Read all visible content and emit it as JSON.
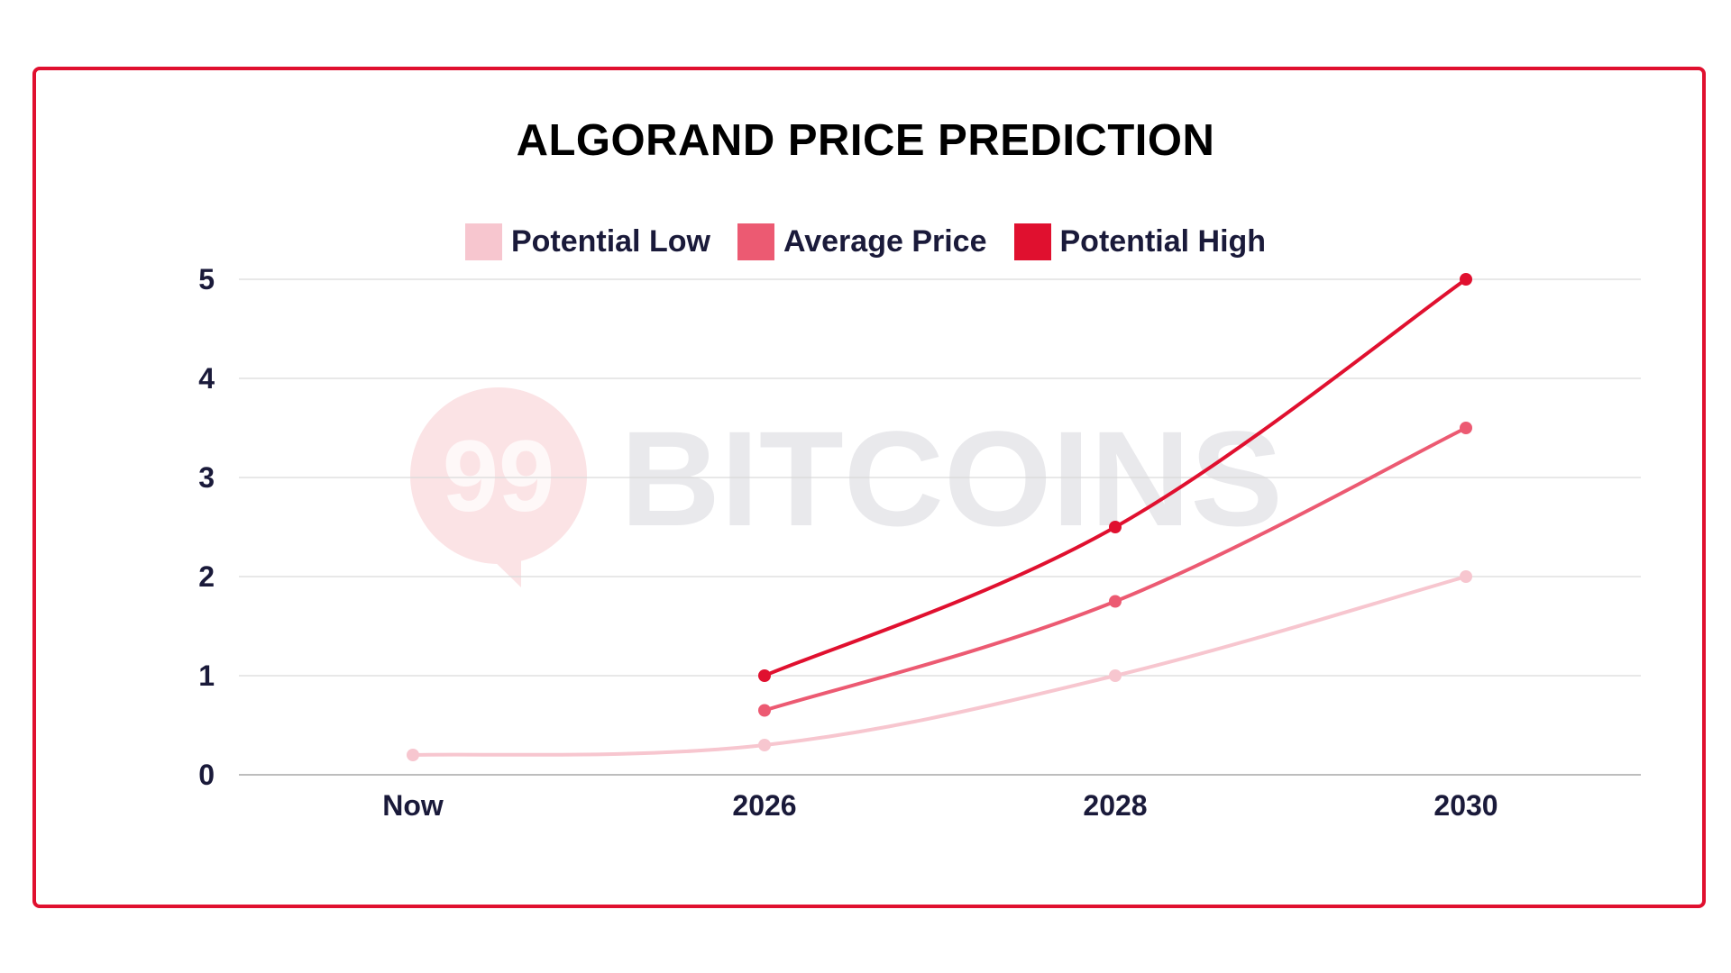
{
  "colors": {
    "frame": "#e0102f",
    "low": "#f7c6cf",
    "avg": "#ec5a72",
    "high": "#e0102f",
    "grid": "#d9d9d9",
    "axis_text": "#1a1a3a",
    "watermark": "#fbe3e5"
  },
  "watermark": {
    "logo_text": "99",
    "brand_text": "BITCOINS"
  },
  "chart_data": {
    "type": "line",
    "title": "ALGORAND PRICE PREDICTION",
    "xlabel": "",
    "ylabel": "",
    "categories": [
      "Now",
      "2026",
      "2028",
      "2030"
    ],
    "yticks": [
      "0",
      "1",
      "2",
      "3",
      "4",
      "5"
    ],
    "ylim": [
      0,
      5
    ],
    "grid": true,
    "legend_position": "top-center",
    "series": [
      {
        "key": "low",
        "name": "Potential Low",
        "values": [
          0.2,
          0.3,
          1.0,
          2.0
        ]
      },
      {
        "key": "avg",
        "name": "Average Price",
        "values": [
          null,
          0.65,
          1.75,
          3.5
        ]
      },
      {
        "key": "high",
        "name": "Potential High",
        "values": [
          null,
          1.0,
          2.5,
          5.0
        ]
      }
    ]
  }
}
